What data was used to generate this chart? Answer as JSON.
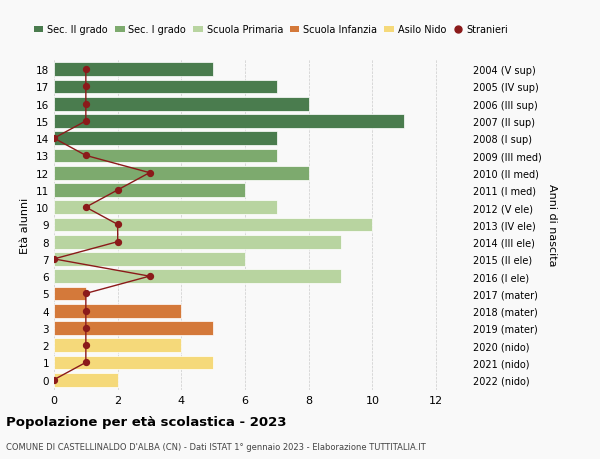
{
  "ages": [
    18,
    17,
    16,
    15,
    14,
    13,
    12,
    11,
    10,
    9,
    8,
    7,
    6,
    5,
    4,
    3,
    2,
    1,
    0
  ],
  "right_labels": [
    "2004 (V sup)",
    "2005 (IV sup)",
    "2006 (III sup)",
    "2007 (II sup)",
    "2008 (I sup)",
    "2009 (III med)",
    "2010 (II med)",
    "2011 (I med)",
    "2012 (V ele)",
    "2013 (IV ele)",
    "2014 (III ele)",
    "2015 (II ele)",
    "2016 (I ele)",
    "2017 (mater)",
    "2018 (mater)",
    "2019 (mater)",
    "2020 (nido)",
    "2021 (nido)",
    "2022 (nido)"
  ],
  "bar_values": [
    5,
    7,
    8,
    11,
    7,
    7,
    8,
    6,
    7,
    10,
    9,
    6,
    9,
    1,
    4,
    5,
    4,
    5,
    2
  ],
  "bar_colors": [
    "#4a7c4e",
    "#4a7c4e",
    "#4a7c4e",
    "#4a7c4e",
    "#4a7c4e",
    "#7daa6e",
    "#7daa6e",
    "#7daa6e",
    "#b8d4a0",
    "#b8d4a0",
    "#b8d4a0",
    "#b8d4a0",
    "#b8d4a0",
    "#d4793a",
    "#d4793a",
    "#d4793a",
    "#f5d97a",
    "#f5d97a",
    "#f5d97a"
  ],
  "stranieri_values": [
    1,
    1,
    1,
    1,
    0,
    1,
    3,
    2,
    1,
    2,
    2,
    0,
    3,
    1,
    1,
    1,
    1,
    1,
    0
  ],
  "stranieri_color": "#8b1a1a",
  "line_color": "#8b1a1a",
  "title": "Popolazione per età scolastica - 2023",
  "subtitle": "COMUNE DI CASTELLINALDO D'ALBA (CN) - Dati ISTAT 1° gennaio 2023 - Elaborazione TUTTITALIA.IT",
  "ylabel_left": "Età alunni",
  "ylabel_right": "Anni di nascita",
  "xlim": [
    0,
    13
  ],
  "xticks": [
    0,
    2,
    4,
    6,
    8,
    10,
    12
  ],
  "legend_labels": [
    "Sec. II grado",
    "Sec. I grado",
    "Scuola Primaria",
    "Scuola Infanzia",
    "Asilo Nido",
    "Stranieri"
  ],
  "legend_colors": [
    "#4a7c4e",
    "#7daa6e",
    "#b8d4a0",
    "#d4793a",
    "#f5d97a",
    "#8b1a1a"
  ],
  "background_color": "#f9f9f9",
  "grid_color": "#cccccc"
}
